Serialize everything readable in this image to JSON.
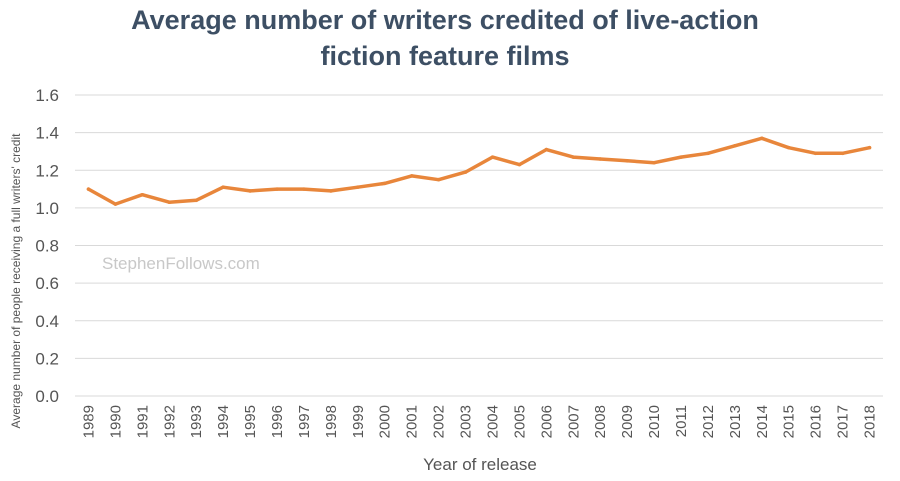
{
  "chart_data": {
    "type": "line",
    "title_lines": [
      "Average number of writers credited of live-action",
      "fiction feature films"
    ],
    "xlabel": "Year of release",
    "ylabel": "Average number of people receiving a full writers' credit",
    "watermark": "StephenFollows.com",
    "ylim": [
      0,
      1.6
    ],
    "yticks": [
      "0.0",
      "0.2",
      "0.4",
      "0.6",
      "0.8",
      "1.0",
      "1.2",
      "1.4",
      "1.6"
    ],
    "grid": true,
    "categories": [
      "1989",
      "1990",
      "1991",
      "1992",
      "1993",
      "1994",
      "1995",
      "1996",
      "1997",
      "1998",
      "1999",
      "2000",
      "2001",
      "2002",
      "2003",
      "2004",
      "2005",
      "2006",
      "2007",
      "2008",
      "2009",
      "2010",
      "2011",
      "2012",
      "2013",
      "2014",
      "2015",
      "2016",
      "2017",
      "2018"
    ],
    "series": [
      {
        "color": "#e8863b",
        "values": [
          1.1,
          1.02,
          1.07,
          1.03,
          1.04,
          1.11,
          1.09,
          1.1,
          1.1,
          1.09,
          1.11,
          1.13,
          1.17,
          1.15,
          1.19,
          1.27,
          1.23,
          1.31,
          1.27,
          1.26,
          1.25,
          1.24,
          1.27,
          1.29,
          1.33,
          1.37,
          1.32,
          1.29,
          1.29,
          1.32
        ]
      }
    ],
    "colors": {
      "title": "#3d4f64",
      "grid": "#d9d9d9",
      "text": "#555555",
      "watermark": "#c8c8c8"
    }
  }
}
